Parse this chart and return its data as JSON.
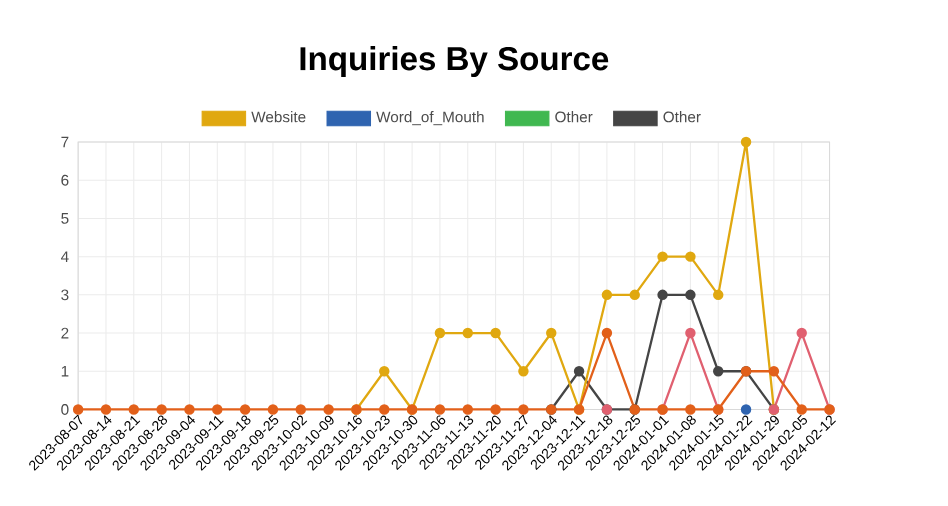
{
  "chart_data": {
    "type": "line",
    "title": "Inquiries By Source",
    "categories": [
      "2023-08-07",
      "2023-08-14",
      "2023-08-21",
      "2023-08-28",
      "2023-09-04",
      "2023-09-11",
      "2023-09-18",
      "2023-09-25",
      "2023-10-02",
      "2023-10-09",
      "2023-10-16",
      "2023-10-23",
      "2023-10-30",
      "2023-11-06",
      "2023-11-13",
      "2023-11-20",
      "2023-11-27",
      "2023-12-04",
      "2023-12-11",
      "2023-12-18",
      "2023-12-25",
      "2024-01-01",
      "2024-01-08",
      "2024-01-15",
      "2024-01-22",
      "2024-01-29",
      "2024-02-05",
      "2024-02-12"
    ],
    "series": [
      {
        "color": "#e2601a",
        "values": [
          0,
          0,
          0,
          0,
          0,
          0,
          0,
          0,
          0,
          0,
          0,
          0,
          0,
          0,
          0,
          0,
          0,
          0,
          0,
          2,
          0,
          0,
          0,
          0,
          1,
          1,
          0,
          0
        ]
      },
      {
        "color": "#e06070",
        "values": [
          null,
          null,
          null,
          null,
          null,
          null,
          null,
          null,
          null,
          null,
          null,
          null,
          null,
          null,
          null,
          null,
          null,
          null,
          null,
          0,
          null,
          0,
          2,
          0,
          null,
          0,
          2,
          0
        ]
      },
      {
        "name": "Website",
        "color": "#e0a810",
        "values": [
          null,
          null,
          null,
          null,
          null,
          null,
          null,
          null,
          null,
          null,
          0,
          1,
          0,
          2,
          2,
          2,
          1,
          2,
          0,
          3,
          3,
          4,
          4,
          3,
          7,
          0,
          null,
          null
        ]
      },
      {
        "name": "Word_of_Mouth",
        "color": "#2f64b0",
        "values": [
          null,
          null,
          null,
          null,
          null,
          null,
          null,
          null,
          null,
          null,
          null,
          null,
          null,
          null,
          null,
          null,
          null,
          null,
          null,
          null,
          null,
          null,
          null,
          null,
          0,
          null,
          null,
          null
        ]
      },
      {
        "name": "Other",
        "color": "#40b850",
        "values": [
          null,
          null,
          null,
          null,
          null,
          null,
          null,
          null,
          null,
          null,
          null,
          null,
          null,
          null,
          null,
          null,
          null,
          null,
          null,
          null,
          null,
          null,
          null,
          null,
          null,
          null,
          null,
          null
        ]
      },
      {
        "name": "Other",
        "color": "#454545",
        "values": [
          null,
          null,
          null,
          null,
          null,
          null,
          null,
          null,
          null,
          null,
          null,
          null,
          null,
          null,
          null,
          null,
          null,
          0,
          1,
          0,
          0,
          3,
          3,
          1,
          1,
          0,
          null,
          null
        ]
      }
    ],
    "ylim": [
      0,
      7
    ],
    "yticks": [
      0,
      1,
      2,
      3,
      4,
      5,
      6,
      7
    ],
    "grid": true,
    "legend": "top",
    "marker": "circle",
    "line_style": "solid"
  }
}
